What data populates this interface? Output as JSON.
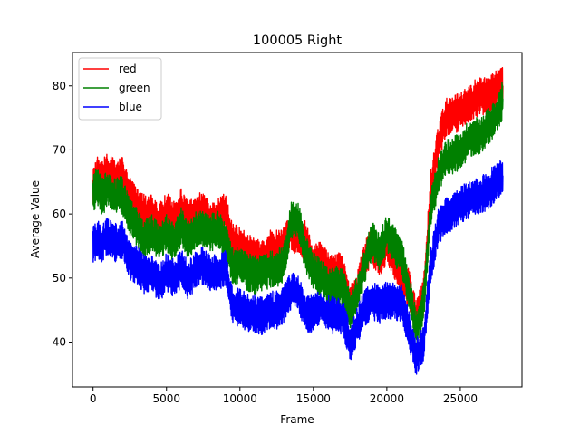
{
  "chart_data": {
    "type": "line",
    "title": "100005 Right",
    "xlabel": "Frame",
    "ylabel": "Average Value",
    "xlim": [
      -1400,
      29200
    ],
    "ylim": [
      33.0,
      85.2
    ],
    "xticks": [
      0,
      5000,
      10000,
      15000,
      20000,
      25000
    ],
    "xtick_labels": [
      "0",
      "5000",
      "10000",
      "15000",
      "20000",
      "25000"
    ],
    "yticks": [
      40,
      50,
      60,
      70,
      80
    ],
    "ytick_labels": [
      "40",
      "50",
      "60",
      "70",
      "80"
    ],
    "grid": false,
    "legend_position": "top-left",
    "series": [
      {
        "name": "red",
        "color": "#ff0000",
        "x": [
          0,
          300,
          600,
          1000,
          1500,
          2000,
          2500,
          3000,
          3500,
          4000,
          4500,
          5000,
          5500,
          6000,
          6500,
          7000,
          7500,
          8000,
          8500,
          9000,
          9500,
          10000,
          10500,
          11000,
          11500,
          12000,
          12500,
          13000,
          13500,
          14000,
          14500,
          15000,
          15500,
          16000,
          16500,
          17000,
          17500,
          18000,
          18500,
          19000,
          19500,
          20000,
          20500,
          21000,
          21500,
          22000,
          22500,
          23000,
          23500,
          24000,
          24500,
          25000,
          25500,
          26000,
          26500,
          27000,
          27500,
          27900
        ],
        "y": [
          64,
          66,
          65.5,
          66.5,
          65.5,
          66,
          63,
          61,
          60,
          60,
          58.5,
          60.5,
          59,
          61,
          59,
          60,
          61,
          58.5,
          59.5,
          60.5,
          55.5,
          55,
          54,
          53.5,
          53,
          54.5,
          54.5,
          55,
          57.5,
          56,
          56,
          52,
          53,
          51,
          51,
          51,
          46,
          48,
          53,
          55,
          53,
          55,
          53,
          50,
          48.5,
          44,
          47,
          64,
          71,
          75,
          75.5,
          76,
          77,
          78,
          78.5,
          78.5,
          79.5,
          80
        ]
      },
      {
        "name": "green",
        "color": "#008000",
        "x": [
          0,
          300,
          600,
          1000,
          1500,
          2000,
          2500,
          3000,
          3500,
          4000,
          4500,
          5000,
          5500,
          6000,
          6500,
          7000,
          7500,
          8000,
          8500,
          9000,
          9500,
          10000,
          10500,
          11000,
          11500,
          12000,
          12500,
          13000,
          13500,
          14000,
          14500,
          15000,
          15500,
          16000,
          16500,
          17000,
          17500,
          18000,
          18500,
          19000,
          19500,
          20000,
          20500,
          21000,
          21500,
          22000,
          22500,
          23000,
          23500,
          24000,
          24500,
          25000,
          25500,
          26000,
          26500,
          27000,
          27500,
          27900
        ],
        "y": [
          63,
          64.5,
          62.5,
          64,
          62.5,
          63,
          59.5,
          58,
          56,
          57,
          55.5,
          57,
          55.5,
          58,
          56,
          57.5,
          58,
          57,
          57.5,
          56,
          52,
          52,
          51,
          50.5,
          50.5,
          51.5,
          51.5,
          52.5,
          59,
          59,
          53.5,
          51,
          50,
          48.5,
          49,
          48.5,
          45,
          47.5,
          52,
          56,
          54,
          57,
          55,
          53.5,
          48,
          42,
          46,
          61,
          66,
          68.5,
          69,
          70,
          71.5,
          72,
          72.5,
          74,
          75.5,
          78
        ]
      },
      {
        "name": "blue",
        "color": "#0000ff",
        "x": [
          0,
          300,
          600,
          1000,
          1500,
          2000,
          2500,
          3000,
          3500,
          4000,
          4500,
          5000,
          5500,
          6000,
          6500,
          7000,
          7500,
          8000,
          8500,
          9000,
          9500,
          10000,
          10500,
          11000,
          11500,
          12000,
          12500,
          13000,
          13500,
          14000,
          14500,
          15000,
          15500,
          16000,
          16500,
          17000,
          17500,
          18000,
          18500,
          19000,
          19500,
          20000,
          20500,
          21000,
          21500,
          22000,
          22500,
          23000,
          23500,
          24000,
          24500,
          25000,
          25500,
          26000,
          26500,
          27000,
          27500,
          27900
        ],
        "y": [
          55,
          56,
          55.5,
          56.5,
          55.5,
          56,
          52.5,
          52,
          50.5,
          51,
          49,
          51,
          50,
          51.5,
          49.5,
          51.5,
          52,
          50.5,
          51,
          51.5,
          45.5,
          45.5,
          44.5,
          44.5,
          44,
          45,
          45,
          46,
          48,
          47.5,
          44.5,
          44.5,
          45.5,
          44.5,
          44,
          44,
          40,
          42.5,
          45.5,
          46.5,
          46,
          46.5,
          46.5,
          46,
          42,
          37.5,
          40,
          52,
          58,
          59.5,
          60.5,
          61.5,
          62,
          62.5,
          63,
          64,
          65,
          66
        ]
      }
    ]
  }
}
